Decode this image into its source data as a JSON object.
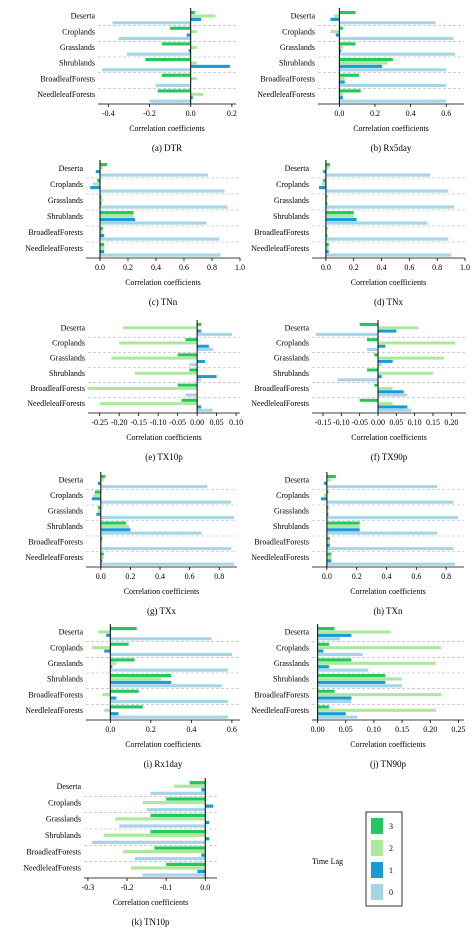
{
  "colors": {
    "lag3": "#22c95a",
    "lag2": "#aee89e",
    "lag1": "#1a9ad6",
    "lag0": "#a8d4e8"
  },
  "legend": {
    "title": "Time Lag",
    "items": [
      "3",
      "2",
      "1",
      "0"
    ]
  },
  "chart_data": [
    {
      "id": "a",
      "type": "bar",
      "orientation": "horizontal",
      "caption": "(a) DTR",
      "xlabel": "Correlation coefficients",
      "categories": [
        "Deserta",
        "Croplands",
        "Grasslands",
        "Shrublands",
        "BroadleafForests",
        "NeedleleafForests"
      ],
      "xlim": [
        -0.45,
        0.22
      ],
      "ticks": [
        -0.4,
        -0.2,
        0.0,
        0.2
      ],
      "tick_labels": [
        "-0.4",
        "-0.2",
        "0.0",
        "0.2"
      ],
      "series": [
        {
          "lag": "3",
          "values": [
            0.02,
            -0.1,
            -0.14,
            -0.22,
            -0.14,
            -0.16
          ]
        },
        {
          "lag": "2",
          "values": [
            0.12,
            0.03,
            0.03,
            0.03,
            0.03,
            0.06
          ]
        },
        {
          "lag": "1",
          "values": [
            0.05,
            -0.02,
            -0.01,
            0.19,
            0.0,
            0.01
          ]
        },
        {
          "lag": "0",
          "values": [
            -0.38,
            -0.35,
            -0.31,
            -0.43,
            -0.17,
            -0.2
          ]
        }
      ]
    },
    {
      "id": "b",
      "type": "bar",
      "orientation": "horizontal",
      "caption": "(b) Rx5day",
      "xlabel": "Correlation coefficients",
      "categories": [
        "Deserta",
        "Croplands",
        "Grasslands",
        "Shrublands",
        "BroadleafForests",
        "NeedleleafForests"
      ],
      "xlim": [
        -0.12,
        0.7
      ],
      "ticks": [
        0.0,
        0.2,
        0.4,
        0.6
      ],
      "tick_labels": [
        "0.0",
        "0.2",
        "0.4",
        "0.6"
      ],
      "series": [
        {
          "lag": "3",
          "values": [
            0.09,
            0.02,
            0.09,
            0.3,
            0.11,
            0.12
          ]
        },
        {
          "lag": "2",
          "values": [
            -0.03,
            -0.05,
            0.02,
            0.27,
            0.03,
            0.02
          ]
        },
        {
          "lag": "1",
          "values": [
            -0.05,
            -0.02,
            0.01,
            0.24,
            0.03,
            0.02
          ]
        },
        {
          "lag": "0",
          "values": [
            0.54,
            0.64,
            0.65,
            0.6,
            0.6,
            0.6
          ]
        }
      ]
    },
    {
      "id": "c",
      "type": "bar",
      "orientation": "horizontal",
      "caption": "(c) TNn",
      "xlabel": "Correlation coefficients",
      "categories": [
        "Deserta",
        "Croplands",
        "Grasslands",
        "Shrublands",
        "BroadleafForests",
        "NeedleleafForests"
      ],
      "xlim": [
        -0.1,
        1.0
      ],
      "ticks": [
        0.0,
        0.2,
        0.4,
        0.6,
        0.8,
        1.0
      ],
      "tick_labels": [
        "0.0",
        "0.2",
        "0.4",
        "0.6",
        "0.8",
        "1.0"
      ],
      "series": [
        {
          "lag": "3",
          "values": [
            0.05,
            -0.02,
            0.01,
            0.24,
            0.02,
            0.03
          ]
        },
        {
          "lag": "2",
          "values": [
            0.02,
            -0.05,
            0.02,
            0.24,
            0.02,
            0.03
          ]
        },
        {
          "lag": "1",
          "values": [
            -0.03,
            -0.07,
            0.01,
            0.25,
            0.03,
            0.03
          ]
        },
        {
          "lag": "0",
          "values": [
            0.77,
            0.89,
            0.91,
            0.76,
            0.85,
            0.86
          ]
        }
      ]
    },
    {
      "id": "d",
      "type": "bar",
      "orientation": "horizontal",
      "caption": "(d) TNx",
      "xlabel": "Correlation coefficients",
      "categories": [
        "Deserta",
        "Croplands",
        "Grasslands",
        "Shrublands",
        "BroadleafForests",
        "NeedleleafForests"
      ],
      "xlim": [
        -0.1,
        1.0
      ],
      "ticks": [
        0.0,
        0.2,
        0.4,
        0.6,
        0.8,
        1.0
      ],
      "tick_labels": [
        "0.0",
        "0.2",
        "0.4",
        "0.6",
        "0.8",
        "1.0"
      ],
      "series": [
        {
          "lag": "3",
          "values": [
            0.03,
            -0.02,
            0.01,
            0.2,
            0.01,
            0.02
          ]
        },
        {
          "lag": "2",
          "values": [
            0.02,
            -0.03,
            0.01,
            0.2,
            0.01,
            0.02
          ]
        },
        {
          "lag": "1",
          "values": [
            -0.02,
            -0.05,
            0.01,
            0.22,
            0.01,
            0.02
          ]
        },
        {
          "lag": "0",
          "values": [
            0.75,
            0.88,
            0.92,
            0.73,
            0.88,
            0.9
          ]
        }
      ]
    },
    {
      "id": "e",
      "type": "bar",
      "orientation": "horizontal",
      "caption": "(e) TX10p",
      "xlabel": "Correlation coefficients",
      "categories": [
        "Deserta",
        "Croplands",
        "Grasslands",
        "Shrublands",
        "BroadleafForests",
        "NeedleleafForests"
      ],
      "xlim": [
        -0.28,
        0.11
      ],
      "ticks": [
        -0.25,
        -0.2,
        -0.15,
        -0.1,
        -0.05,
        0.0,
        0.05,
        0.1
      ],
      "tick_labels": [
        "-0.25",
        "-0.20",
        "-0.15",
        "-0.10",
        "-0.05",
        "0.00",
        "0.05",
        "0.10"
      ],
      "series": [
        {
          "lag": "3",
          "values": [
            0.01,
            -0.03,
            -0.05,
            -0.02,
            -0.05,
            -0.04
          ]
        },
        {
          "lag": "2",
          "values": [
            -0.19,
            -0.2,
            -0.22,
            -0.16,
            -0.28,
            -0.25
          ]
        },
        {
          "lag": "1",
          "values": [
            0.01,
            0.03,
            0.02,
            0.05,
            0.0,
            0.01
          ]
        },
        {
          "lag": "0",
          "values": [
            0.09,
            0.04,
            -0.02,
            0.01,
            -0.03,
            0.04
          ]
        }
      ]
    },
    {
      "id": "f",
      "type": "bar",
      "orientation": "horizontal",
      "caption": "(f) TX90p",
      "xlabel": "Correlation coefficients",
      "categories": [
        "Deserta",
        "Croplands",
        "Grasslands",
        "Shrublands",
        "BroadleafForests",
        "NeedleleafForests"
      ],
      "xlim": [
        -0.18,
        0.24
      ],
      "ticks": [
        -0.15,
        -0.1,
        -0.05,
        0.0,
        0.05,
        0.1,
        0.15,
        0.2
      ],
      "tick_labels": [
        "-0.15",
        "-0.10",
        "-0.05",
        "0.00",
        "0.05",
        "0.10",
        "0.15",
        "0.20"
      ],
      "series": [
        {
          "lag": "3",
          "values": [
            -0.05,
            -0.03,
            -0.01,
            -0.03,
            -0.01,
            -0.05
          ]
        },
        {
          "lag": "2",
          "values": [
            0.11,
            0.21,
            0.18,
            0.15,
            0.04,
            0.04
          ]
        },
        {
          "lag": "1",
          "values": [
            0.05,
            0.02,
            0.04,
            0.01,
            0.07,
            0.08
          ]
        },
        {
          "lag": "0",
          "values": [
            -0.17,
            -0.03,
            0.01,
            -0.11,
            0.08,
            0.09
          ]
        }
      ]
    },
    {
      "id": "g",
      "type": "bar",
      "orientation": "horizontal",
      "caption": "(g) TXx",
      "xlabel": "Correlation coefficients",
      "categories": [
        "Deserta",
        "Croplands",
        "Grasslands",
        "Shrublands",
        "BroadleafForests",
        "NeedleleafForests"
      ],
      "xlim": [
        -0.1,
        0.92
      ],
      "ticks": [
        0.0,
        0.2,
        0.4,
        0.6,
        0.8
      ],
      "tick_labels": [
        "0.0",
        "0.2",
        "0.4",
        "0.6",
        "0.8"
      ],
      "series": [
        {
          "lag": "3",
          "values": [
            0.03,
            -0.04,
            -0.02,
            0.17,
            0.01,
            0.02
          ]
        },
        {
          "lag": "2",
          "values": [
            0.02,
            -0.05,
            -0.02,
            0.19,
            0.01,
            0.02
          ]
        },
        {
          "lag": "1",
          "values": [
            -0.02,
            -0.06,
            -0.03,
            0.2,
            0.0,
            0.01
          ]
        },
        {
          "lag": "0",
          "values": [
            0.72,
            0.88,
            0.9,
            0.68,
            0.88,
            0.9
          ]
        }
      ]
    },
    {
      "id": "h",
      "type": "bar",
      "orientation": "horizontal",
      "caption": "(h) TXn",
      "xlabel": "Correlation coefficients",
      "categories": [
        "Deserta",
        "Croplands",
        "Grasslands",
        "Shrublands",
        "BroadleafForests",
        "NeedleleafForests"
      ],
      "xlim": [
        -0.1,
        0.92
      ],
      "ticks": [
        0.0,
        0.2,
        0.4,
        0.6,
        0.8
      ],
      "tick_labels": [
        "0.0",
        "0.2",
        "0.4",
        "0.6",
        "0.8"
      ],
      "series": [
        {
          "lag": "3",
          "values": [
            0.06,
            0.01,
            0.01,
            0.22,
            0.02,
            0.03
          ]
        },
        {
          "lag": "2",
          "values": [
            0.03,
            -0.02,
            0.01,
            0.22,
            0.02,
            0.03
          ]
        },
        {
          "lag": "1",
          "values": [
            -0.02,
            -0.04,
            0.01,
            0.22,
            0.02,
            0.03
          ]
        },
        {
          "lag": "0",
          "values": [
            0.74,
            0.85,
            0.88,
            0.74,
            0.85,
            0.86
          ]
        }
      ]
    },
    {
      "id": "i",
      "type": "bar",
      "orientation": "horizontal",
      "caption": "(i) Rx1day",
      "xlabel": "Correlation coefficients",
      "categories": [
        "Deserta",
        "Croplands",
        "Grasslands",
        "Shrublands",
        "BroadleafForests",
        "NeedleleafForests"
      ],
      "xlim": [
        -0.12,
        0.64
      ],
      "ticks": [
        0.0,
        0.2,
        0.4,
        0.6
      ],
      "tick_labels": [
        "0.0",
        "0.2",
        "0.4",
        "0.6"
      ],
      "series": [
        {
          "lag": "3",
          "values": [
            0.13,
            0.09,
            0.12,
            0.3,
            0.14,
            0.16
          ]
        },
        {
          "lag": "2",
          "values": [
            -0.06,
            -0.09,
            0.03,
            0.25,
            -0.04,
            -0.03
          ]
        },
        {
          "lag": "1",
          "values": [
            -0.02,
            -0.03,
            0.01,
            0.3,
            0.03,
            0.04
          ]
        },
        {
          "lag": "0",
          "values": [
            0.5,
            0.6,
            0.58,
            0.55,
            0.58,
            0.58
          ]
        }
      ]
    },
    {
      "id": "j",
      "type": "bar",
      "orientation": "horizontal",
      "caption": "(j) TN90p",
      "xlabel": "Correlation coefficients",
      "categories": [
        "Deserta",
        "Croplands",
        "Grasslands",
        "Shrublands",
        "BroadleafForests",
        "NeedleleafForests"
      ],
      "xlim": [
        -0.01,
        0.26
      ],
      "ticks": [
        0.0,
        0.05,
        0.1,
        0.15,
        0.2,
        0.25
      ],
      "tick_labels": [
        "0.00",
        "0.05",
        "0.10",
        "0.15",
        "0.20",
        "0.25"
      ],
      "series": [
        {
          "lag": "3",
          "values": [
            0.03,
            0.02,
            0.06,
            0.12,
            0.03,
            0.02
          ]
        },
        {
          "lag": "2",
          "values": [
            0.13,
            0.22,
            0.21,
            0.15,
            0.22,
            0.21
          ]
        },
        {
          "lag": "1",
          "values": [
            0.06,
            0.01,
            0.02,
            0.12,
            0.06,
            0.05
          ]
        },
        {
          "lag": "0",
          "values": [
            0.04,
            0.08,
            0.09,
            0.15,
            0.06,
            0.07
          ]
        }
      ]
    },
    {
      "id": "k",
      "type": "bar",
      "orientation": "horizontal",
      "caption": "(k) TN10p",
      "xlabel": "Correlation coefficients",
      "categories": [
        "Deserta",
        "Croplands",
        "Grasslands",
        "Shrublands",
        "BroadleafForests",
        "NeedleleafForests"
      ],
      "xlim": [
        -0.31,
        0.03
      ],
      "ticks": [
        -0.3,
        -0.2,
        -0.1,
        0.0
      ],
      "tick_labels": [
        "-0.3",
        "-0.2",
        "-0.1",
        "0.0"
      ],
      "series": [
        {
          "lag": "3",
          "values": [
            -0.04,
            -0.1,
            -0.14,
            -0.14,
            -0.13,
            -0.1
          ]
        },
        {
          "lag": "2",
          "values": [
            -0.08,
            -0.16,
            -0.23,
            -0.26,
            -0.21,
            -0.19
          ]
        },
        {
          "lag": "1",
          "values": [
            -0.01,
            0.02,
            0.01,
            0.01,
            -0.01,
            -0.02
          ]
        },
        {
          "lag": "0",
          "values": [
            -0.14,
            -0.15,
            -0.22,
            -0.29,
            -0.18,
            -0.16
          ]
        }
      ]
    }
  ]
}
